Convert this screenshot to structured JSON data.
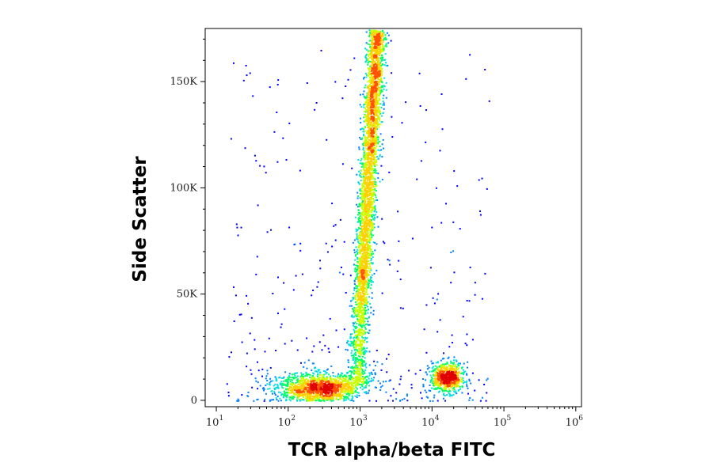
{
  "chart_data": {
    "type": "scatter",
    "title": "",
    "xlabel": "TCR alpha/beta FITC",
    "ylabel": "Side Scatter",
    "x_scale": "log",
    "xlim": [
      7,
      1200000
    ],
    "ylim": [
      -3000,
      175000
    ],
    "x_ticks": [
      {
        "base": "10",
        "exp": "1",
        "value": 10
      },
      {
        "base": "10",
        "exp": "2",
        "value": 100
      },
      {
        "base": "10",
        "exp": "3",
        "value": 1000
      },
      {
        "base": "10",
        "exp": "4",
        "value": 10000
      },
      {
        "base": "10",
        "exp": "5",
        "value": 100000
      },
      {
        "base": "10",
        "exp": "6",
        "value": 1000000
      }
    ],
    "y_ticks": [
      {
        "label": "0",
        "value": 0
      },
      {
        "label": "50K",
        "value": 50000
      },
      {
        "label": "100K",
        "value": 100000
      },
      {
        "label": "150K",
        "value": 150000
      }
    ],
    "grid": false,
    "legend": "none",
    "density_colormap": [
      "#0000ff",
      "#0080ff",
      "#00e0e0",
      "#00ff60",
      "#c8ff00",
      "#ffd000",
      "#ff5000",
      "#e00000"
    ],
    "populations": [
      {
        "id": "TCR-negative lymphocytes",
        "x_log10_center": 2.45,
        "x_log10_sd": 0.3,
        "y_center": 6000,
        "y_sd": 3500,
        "n": 1500,
        "peak_color_index": 7
      },
      {
        "id": "TCR-positive T cells (low SSC)",
        "x_log10_center": 4.2,
        "x_log10_sd": 0.12,
        "y_center": 11000,
        "y_sd": 3500,
        "n": 700,
        "peak_color_index": 4
      },
      {
        "id": "TCR-dim vertical population",
        "x_log10_center_range": [
          2.9,
          3.25
        ],
        "y_range": [
          8000,
          175000
        ],
        "n": 3500,
        "peak_color_index": 3
      }
    ]
  }
}
